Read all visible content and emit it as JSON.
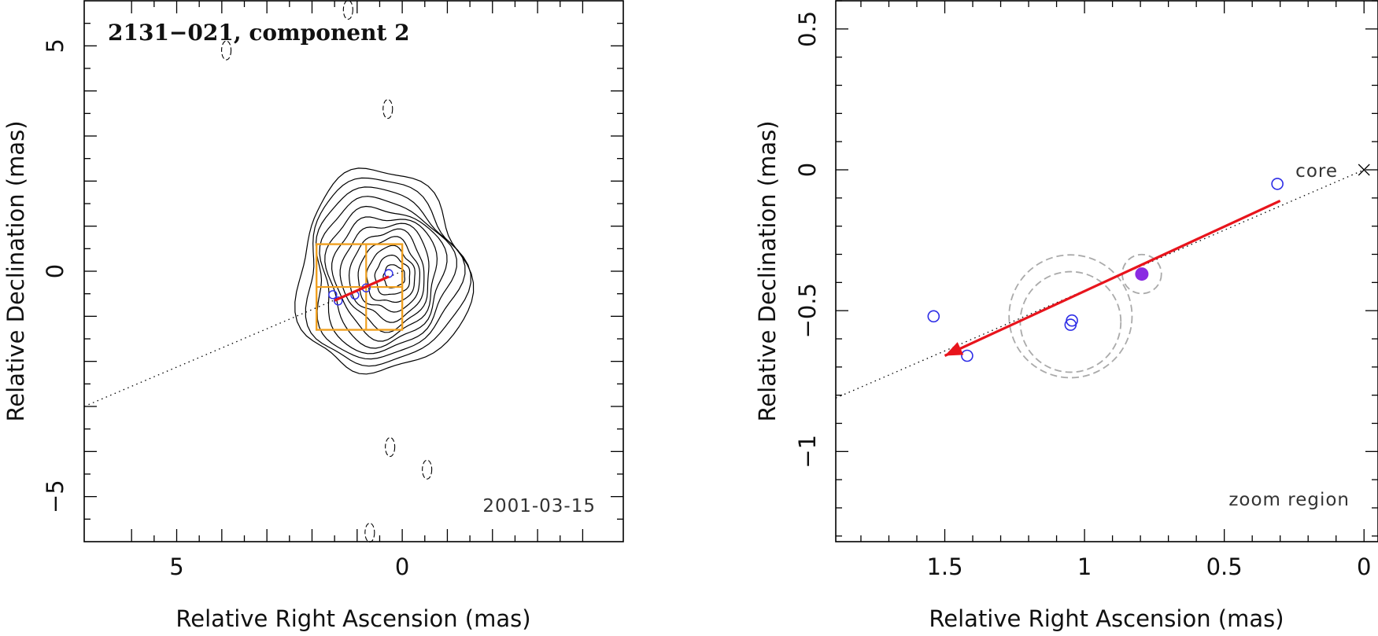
{
  "chart_data": [
    {
      "type": "scatter",
      "panel": "contour map",
      "title": "2131−021, component 2",
      "epoch": "2001-03-15",
      "xlabel": "Relative Right Ascension (mas)",
      "ylabel": "Relative Declination (mas)",
      "xlim": [
        7.05,
        -4.9
      ],
      "ylim": [
        -6.0,
        6.0
      ],
      "x_axis_reversed": true,
      "xtick_labels": [
        {
          "value": 5,
          "label": "5"
        },
        {
          "value": 0,
          "label": "0"
        }
      ],
      "ytick_labels": [
        {
          "value": 5,
          "label": "5"
        },
        {
          "value": 0,
          "label": "0"
        },
        {
          "value": -5,
          "label": "−5"
        }
      ],
      "x_major_ticks": [
        6,
        5,
        4,
        3,
        2,
        1,
        0,
        -1,
        -2,
        -3,
        -4
      ],
      "y_major_ticks": [
        5,
        4,
        3,
        2,
        1,
        0,
        -1,
        -2,
        -3,
        -4,
        -5
      ],
      "contour_levels_count": 12,
      "contour_center": [
        0.18,
        -0.12
      ],
      "components": [
        {
          "x": 1.54,
          "y": -0.52
        },
        {
          "x": 1.42,
          "y": -0.66
        },
        {
          "x": 1.05,
          "y": -0.53
        },
        {
          "x": 0.8,
          "y": -0.37
        },
        {
          "x": 0.3,
          "y": -0.05
        }
      ],
      "jet_axis": {
        "from": [
          7.05,
          -3.0
        ],
        "to": [
          0.0,
          0.0
        ]
      },
      "motion_vector": {
        "from": [
          0.3,
          -0.12
        ],
        "to": [
          1.5,
          -0.65
        ]
      },
      "zoom_box": {
        "x": [
          0.0,
          1.9
        ],
        "y": [
          -1.3,
          0.6
        ]
      },
      "zoom_grid": {
        "x": 0.8,
        "y": -0.35
      },
      "negative_contours": [
        {
          "x": 3.9,
          "y": 4.9
        },
        {
          "x": 1.2,
          "y": 5.8
        },
        {
          "x": 0.32,
          "y": 3.6
        },
        {
          "x": 0.27,
          "y": -3.9
        },
        {
          "x": -0.55,
          "y": -4.4
        },
        {
          "x": 0.72,
          "y": -5.8
        }
      ]
    },
    {
      "type": "scatter",
      "panel": "zoom",
      "annotation": "zoom region",
      "core_label": "core",
      "xlabel": "Relative Right Ascension (mas)",
      "ylabel": "Relative Declination (mas)",
      "xlim": [
        1.89,
        -0.05
      ],
      "ylim": [
        -1.32,
        0.6
      ],
      "x_axis_reversed": true,
      "xtick_labels": [
        {
          "value": 1.5,
          "label": "1.5"
        },
        {
          "value": 1,
          "label": "1"
        },
        {
          "value": 0.5,
          "label": "0.5"
        },
        {
          "value": 0,
          "label": "0"
        }
      ],
      "ytick_labels": [
        {
          "value": 0.5,
          "label": "0.5"
        },
        {
          "value": 0,
          "label": "0"
        },
        {
          "value": -0.5,
          "label": "−0.5"
        },
        {
          "value": -1,
          "label": "−1"
        }
      ],
      "x_major_ticks": [
        1.5,
        1.0,
        0.5,
        0.0
      ],
      "x_minor_step": 0.1,
      "y_major_ticks": [
        0.5,
        0.0,
        -0.5,
        -1.0
      ],
      "y_minor_step": 0.1,
      "core": {
        "x": 0.0,
        "y": 0.0
      },
      "components": [
        {
          "x": 1.54,
          "y": -0.52
        },
        {
          "x": 1.42,
          "y": -0.66
        },
        {
          "x": 1.05,
          "y": -0.55
        },
        {
          "x": 1.045,
          "y": -0.535
        },
        {
          "x": 0.31,
          "y": -0.05
        }
      ],
      "highlighted_component": {
        "x": 0.795,
        "y": -0.37
      },
      "uncertainty_circles": [
        {
          "x": 1.05,
          "y": -0.52,
          "r": 0.22
        },
        {
          "x": 1.05,
          "y": -0.54,
          "r": 0.18
        },
        {
          "x": 0.795,
          "y": -0.37,
          "r": 0.07
        }
      ],
      "jet_axis": {
        "from": [
          1.89,
          -0.81
        ],
        "to": [
          0.0,
          0.0
        ]
      },
      "motion_vector": {
        "from": [
          0.3,
          -0.11
        ],
        "to": [
          1.5,
          -0.66
        ]
      }
    }
  ],
  "colors": {
    "motion_vector": "#e8141c",
    "component": "#2d2de6",
    "highlight": "#8a2be2",
    "zoom_box": "#f0a020",
    "uncertainty": "#aaaaaa"
  }
}
